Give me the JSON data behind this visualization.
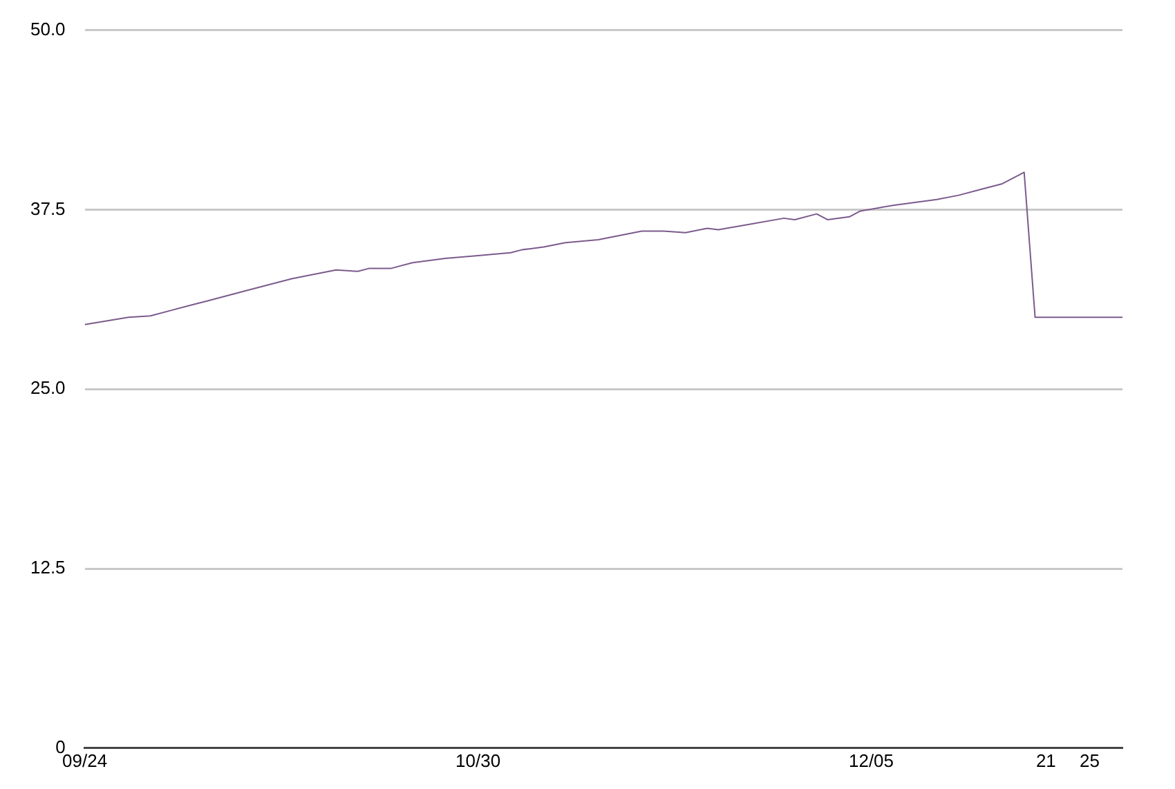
{
  "chart_data": {
    "type": "line",
    "x": [
      "--09-24",
      "--09-28",
      "--09-30",
      "--10-02",
      "--10-04",
      "--10-05",
      "--10-09",
      "--10-13",
      "--10-15",
      "--10-17",
      "--10-19",
      "--10-20",
      "--10-22",
      "--10-24",
      "--10-27",
      "--10-30",
      "--11-02",
      "--11-03",
      "--11-05",
      "--11-07",
      "--11-10",
      "--11-12",
      "--11-14",
      "--11-16",
      "--11-18",
      "--11-20",
      "--11-21",
      "--11-24",
      "--11-27",
      "--11-28",
      "--11-30",
      "--12-01",
      "--12-03",
      "--12-04",
      "--12-07",
      "--12-09",
      "--12-11",
      "--12-13",
      "--12-15",
      "--12-17",
      "--12-19",
      "--12-20",
      "--12-28"
    ],
    "series": [
      {
        "color": "#7b5a8c",
        "values": [
          29.5,
          30.0,
          30.1,
          30.5,
          30.9,
          31.1,
          31.9,
          32.7,
          33.0,
          33.3,
          33.2,
          33.4,
          33.4,
          33.8,
          34.1,
          34.3,
          34.5,
          34.7,
          34.9,
          35.2,
          35.4,
          35.7,
          36.0,
          36.0,
          35.9,
          36.2,
          36.1,
          36.5,
          36.9,
          36.8,
          37.2,
          36.8,
          37.0,
          37.4,
          37.8,
          38.0,
          38.2,
          38.5,
          38.9,
          39.3,
          40.1,
          30.0,
          30.0
        ]
      }
    ],
    "xlim": [
      "--09-24",
      "--12-28"
    ],
    "xticks": [
      {
        "value": "--09-24",
        "label": "09/24"
      },
      {
        "value": "--10-30",
        "label": "10/30"
      },
      {
        "value": "--12-05",
        "label": "12/05"
      },
      {
        "value": "--12-21",
        "label": "21"
      },
      {
        "value": "--12-25",
        "label": "25"
      }
    ],
    "ylim": [
      0,
      50
    ],
    "yticks": [
      0,
      {
        "value": 12.5,
        "label": "12.5"
      },
      {
        "value": 25,
        "label": "25.0"
      },
      {
        "value": 37.5,
        "label": "37.5"
      },
      {
        "value": 50,
        "label": "50.0"
      }
    ],
    "grid": "y",
    "legend": false,
    "marker": "none",
    "line_style": "solid"
  }
}
